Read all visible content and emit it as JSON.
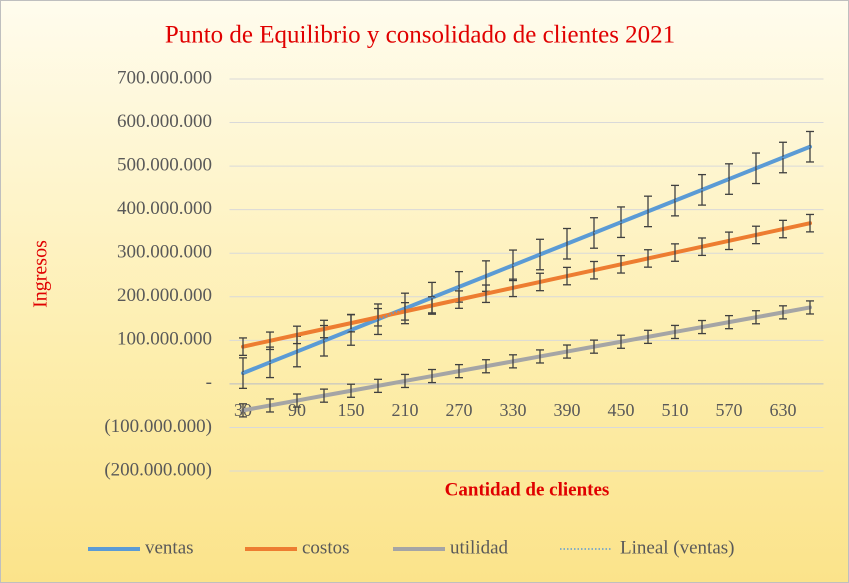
{
  "chart_data": {
    "type": "line",
    "title": "Punto de Equilibrio  y consolidado  de clientes 2021",
    "x_label": "Cantidad de clientes",
    "y_label": "Ingresos",
    "categories": [
      30,
      null,
      90,
      null,
      150,
      null,
      210,
      null,
      270,
      null,
      330,
      null,
      390,
      null,
      450,
      null,
      510,
      null,
      570,
      null,
      630,
      null
    ],
    "ylim": [
      -200000000,
      700000000
    ],
    "yticks": [
      {
        "value": -200000000,
        "label": "(200.000.000)"
      },
      {
        "value": -100000000,
        "label": "(100.000.000)"
      },
      {
        "value": 0,
        "label": "-"
      },
      {
        "value": 100000000,
        "label": "100.000.000"
      },
      {
        "value": 200000000,
        "label": "200.000.000"
      },
      {
        "value": 300000000,
        "label": "300.000.000"
      },
      {
        "value": 400000000,
        "label": "400.000.000"
      },
      {
        "value": 500000000,
        "label": "500.000.000"
      },
      {
        "value": 600000000,
        "label": "600.000.000"
      },
      {
        "value": 700000000,
        "label": "700.000.000"
      }
    ],
    "grid": true,
    "legend": "bottom",
    "series": [
      {
        "name": "ventas",
        "color": "#5b9bd5",
        "error": 35000000,
        "values": [
          24750000,
          49500000,
          74250000,
          99000000,
          123750000,
          148500000,
          173250000,
          198000000,
          222750000,
          247500000,
          272250000,
          297000000,
          321750000,
          346500000,
          371250000,
          396000000,
          420750000,
          445500000,
          470250000,
          495000000,
          519750000,
          544500000
        ]
      },
      {
        "name": "costos",
        "color": "#ed7d31",
        "error": 20000000,
        "values": [
          85500000,
          99000000,
          112500000,
          126000000,
          139500000,
          153000000,
          166500000,
          180000000,
          193500000,
          207000000,
          220500000,
          234000000,
          247500000,
          261000000,
          274500000,
          288000000,
          301500000,
          315000000,
          328500000,
          342000000,
          355500000,
          369000000
        ]
      },
      {
        "name": "utilidad",
        "color": "#a5a5a5",
        "error": 15000000,
        "values": [
          -60750000,
          -49500000,
          -38250000,
          -27000000,
          -15750000,
          -4500000,
          6750000,
          18000000,
          29250000,
          40500000,
          51750000,
          63000000,
          74250000,
          85500000,
          96750000,
          108000000,
          119250000,
          130500000,
          141750000,
          153000000,
          164250000,
          175500000
        ]
      },
      {
        "name": "Lineal (ventas)",
        "color": "#5b9bd5",
        "style": "dotted",
        "values": [
          24750000,
          49500000,
          74250000,
          99000000,
          123750000,
          148500000,
          173250000,
          198000000,
          222750000,
          247500000,
          272250000,
          297000000,
          321750000,
          346500000,
          371250000,
          396000000,
          420750000,
          445500000,
          470250000,
          495000000,
          519750000,
          544500000
        ]
      }
    ]
  }
}
